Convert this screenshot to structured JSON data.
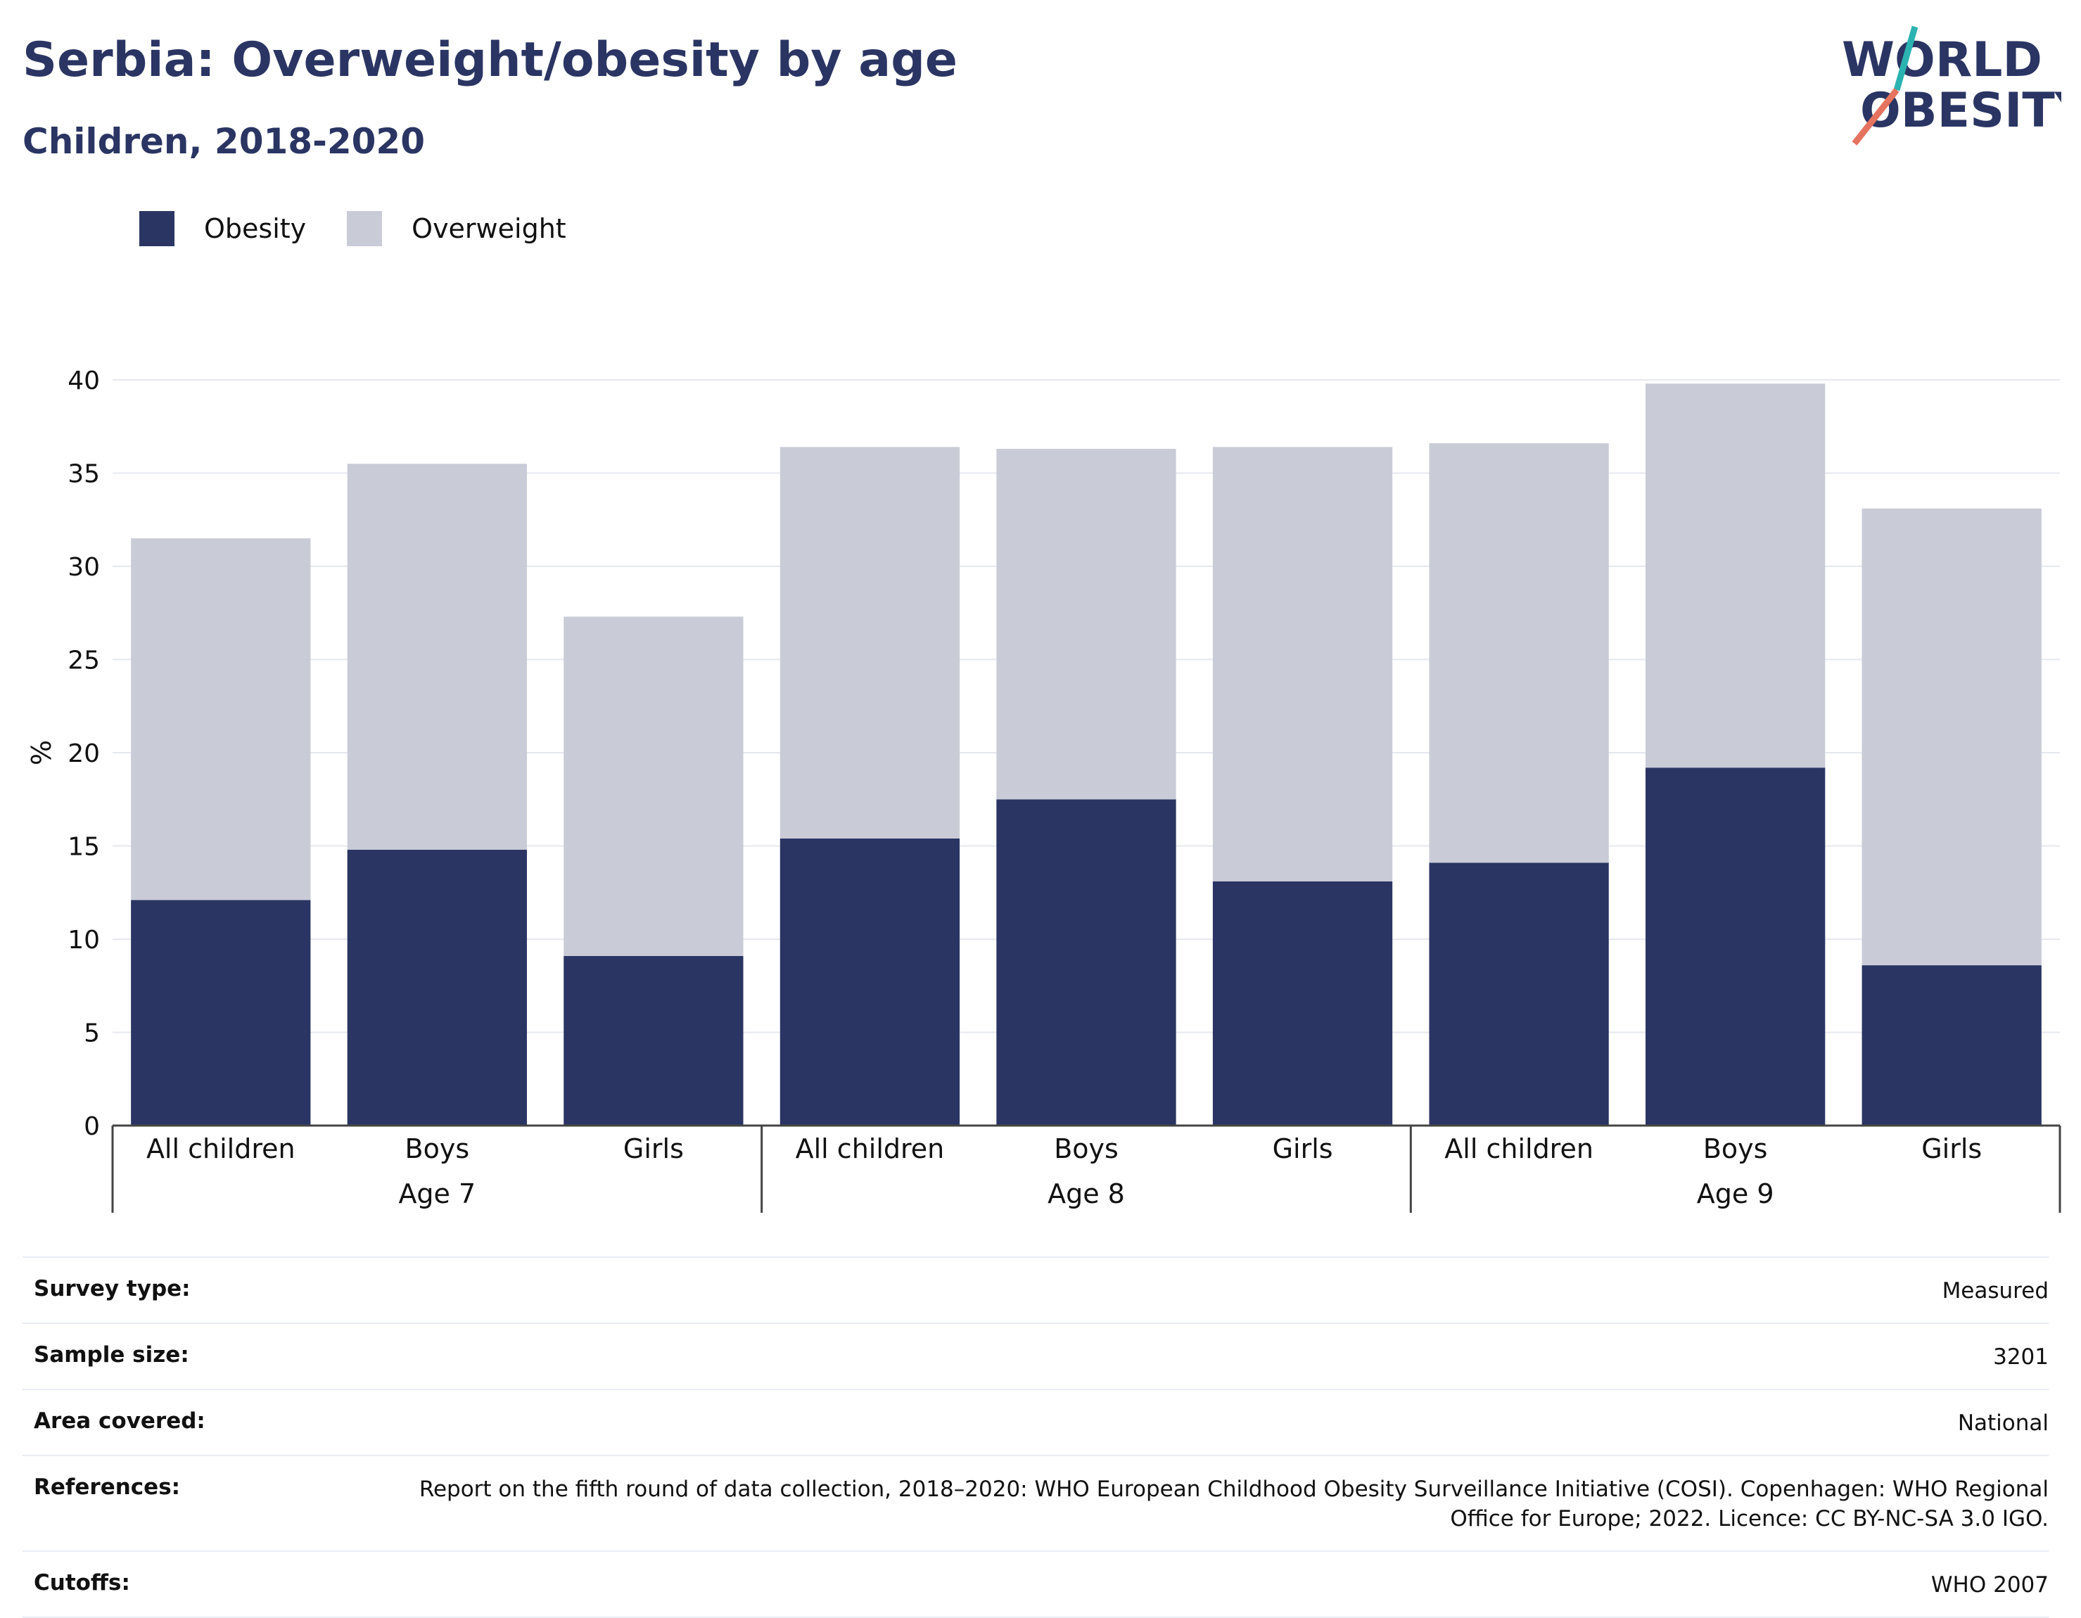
{
  "header": {
    "title": "Serbia: Overweight/obesity by age",
    "subtitle": "Children, 2018-2020"
  },
  "logo": {
    "line1": "WORLD",
    "line2": "OBESITY",
    "text_color": "#2a3563",
    "accent_teal": "#2bb3b1",
    "accent_coral": "#e5735f"
  },
  "legend": {
    "items": [
      {
        "label": "Obesity",
        "color": "#2a3563"
      },
      {
        "label": "Overweight",
        "color": "#c9cbd7"
      }
    ]
  },
  "chart_data": {
    "type": "bar",
    "stacked": true,
    "ylabel": "%",
    "ylim": [
      0,
      40
    ],
    "yticks": [
      0,
      5,
      10,
      15,
      20,
      25,
      30,
      35,
      40
    ],
    "grid": true,
    "legend_position": "top-left",
    "groups": [
      {
        "label": "Age 7",
        "categories": [
          "All children",
          "Boys",
          "Girls"
        ]
      },
      {
        "label": "Age 8",
        "categories": [
          "All children",
          "Boys",
          "Girls"
        ]
      },
      {
        "label": "Age 9",
        "categories": [
          "All children",
          "Boys",
          "Girls"
        ]
      }
    ],
    "series": [
      {
        "name": "Obesity",
        "color": "#2a3563",
        "values": [
          12.1,
          14.8,
          9.1,
          15.4,
          17.5,
          13.1,
          14.1,
          19.2,
          8.6
        ]
      },
      {
        "name": "Overweight",
        "color": "#c9cbd7",
        "values": [
          19.4,
          20.7,
          18.2,
          21.0,
          18.8,
          23.3,
          22.5,
          20.6,
          24.5
        ]
      }
    ]
  },
  "info": {
    "rows": [
      {
        "label": "Survey type:",
        "value": "Measured"
      },
      {
        "label": "Sample size:",
        "value": "3201"
      },
      {
        "label": "Area covered:",
        "value": "National"
      },
      {
        "label": "References:",
        "value": "Report on the fifth round of data collection, 2018–2020: WHO European Childhood Obesity Surveillance Initiative (COSI). Copenhagen: WHO Regional Office for Europe; 2022. Licence: CC BY-NC-SA 3.0 IGO."
      },
      {
        "label": "Cutoffs:",
        "value": "WHO 2007"
      }
    ]
  }
}
